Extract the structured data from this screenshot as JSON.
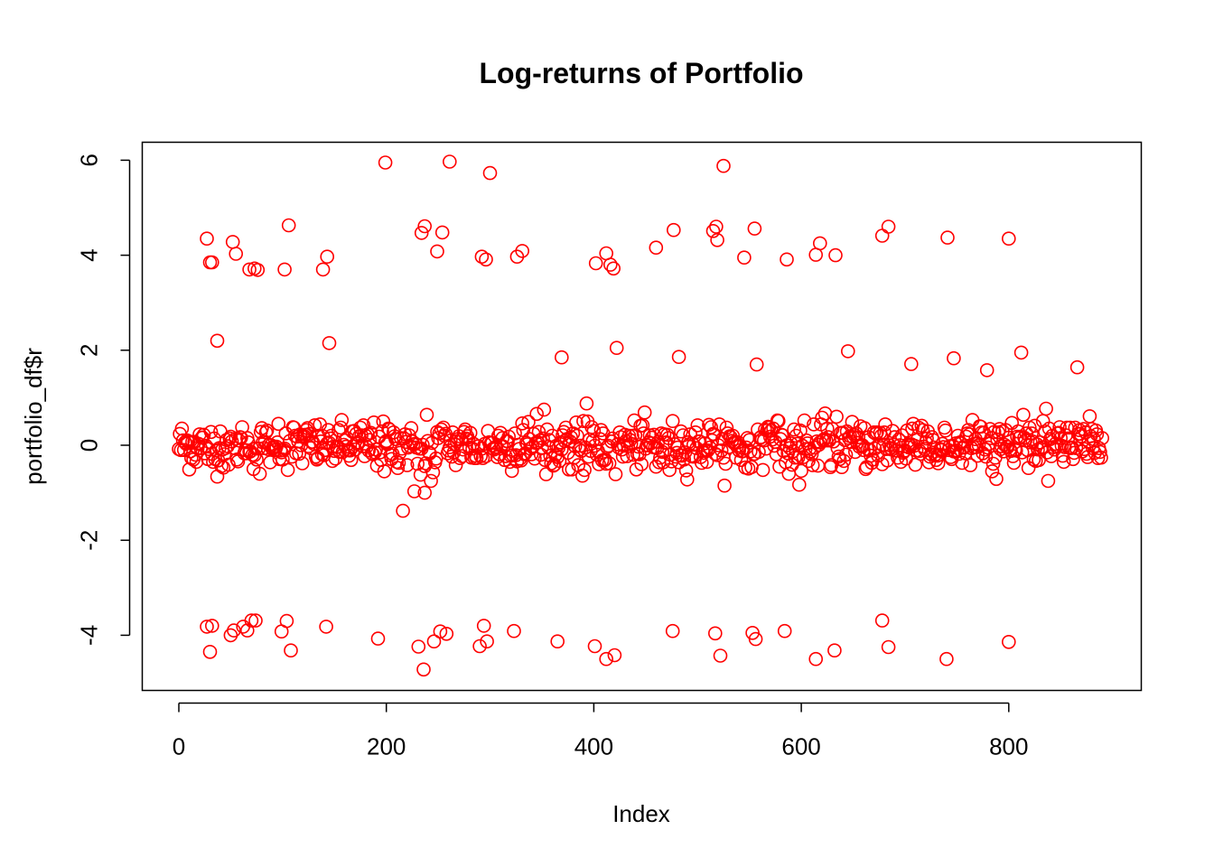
{
  "chart_data": {
    "type": "scatter",
    "title": "Log-returns of Portfolio",
    "xlabel": "Index",
    "ylabel": "portfolio_df$r",
    "xlim": [
      0,
      890
    ],
    "ylim": [
      -5,
      6
    ],
    "x_ticks": [
      0,
      200,
      400,
      600,
      800
    ],
    "y_ticks": [
      -4,
      -2,
      0,
      2,
      4,
      6
    ],
    "x_tick_labels": [
      "0",
      "200",
      "400",
      "600",
      "800"
    ],
    "y_tick_labels": [
      "-4",
      "-2",
      "0",
      "2",
      "4",
      "6"
    ],
    "grid": false,
    "legend": "none",
    "point_color": "#ff0000",
    "marker": "open-circle",
    "series": [
      {
        "x": [
          27,
          30,
          32,
          52,
          55,
          68,
          73,
          76,
          102,
          106,
          139,
          143,
          199,
          234,
          237,
          249,
          254,
          261,
          292,
          296,
          300,
          326,
          331,
          402,
          412,
          416,
          419,
          460,
          477,
          515,
          518,
          519,
          525,
          545,
          555,
          586,
          614,
          618,
          633,
          678,
          684,
          741,
          800,
          37,
          145,
          369,
          422,
          482,
          557,
          645,
          706,
          747,
          779,
          812,
          866,
          216,
          227,
          233,
          237,
          243,
          27,
          30,
          32,
          50,
          53,
          62,
          66,
          70,
          74,
          99,
          104,
          108,
          142,
          192,
          231,
          236,
          246,
          252,
          258,
          290,
          294,
          297,
          323,
          365,
          401,
          412,
          420,
          476,
          517,
          522,
          553,
          556,
          584,
          614,
          632,
          678,
          684,
          740,
          800
        ],
        "y": [
          4.35,
          3.85,
          3.85,
          4.28,
          4.03,
          3.7,
          3.72,
          3.69,
          3.7,
          4.63,
          3.7,
          3.97,
          5.95,
          4.47,
          4.61,
          4.08,
          4.48,
          5.97,
          3.97,
          3.91,
          5.73,
          3.97,
          4.09,
          3.83,
          4.04,
          3.8,
          3.72,
          4.16,
          4.53,
          4.51,
          4.6,
          4.32,
          5.88,
          3.95,
          4.56,
          3.91,
          4.01,
          4.25,
          4.0,
          4.41,
          4.6,
          4.37,
          4.35,
          2.2,
          2.15,
          1.85,
          2.05,
          1.86,
          1.7,
          1.98,
          1.71,
          1.83,
          1.58,
          1.95,
          1.64,
          -1.38,
          -0.97,
          -0.62,
          -1.0,
          -0.75,
          -3.82,
          -4.35,
          -3.8,
          -4.0,
          -3.9,
          -3.82,
          -3.9,
          -3.69,
          -3.69,
          -3.92,
          -3.7,
          -4.32,
          -3.82,
          -4.07,
          -4.24,
          -4.72,
          -4.13,
          -3.92,
          -3.97,
          -4.23,
          -3.8,
          -4.13,
          -3.91,
          -4.13,
          -4.23,
          -4.5,
          -4.42,
          -3.91,
          -3.96,
          -4.43,
          -3.95,
          -4.08,
          -3.91,
          -4.5,
          -4.32,
          -3.69,
          -4.25,
          -4.5,
          -4.14
        ],
        "n_total": 891
      }
    ]
  }
}
